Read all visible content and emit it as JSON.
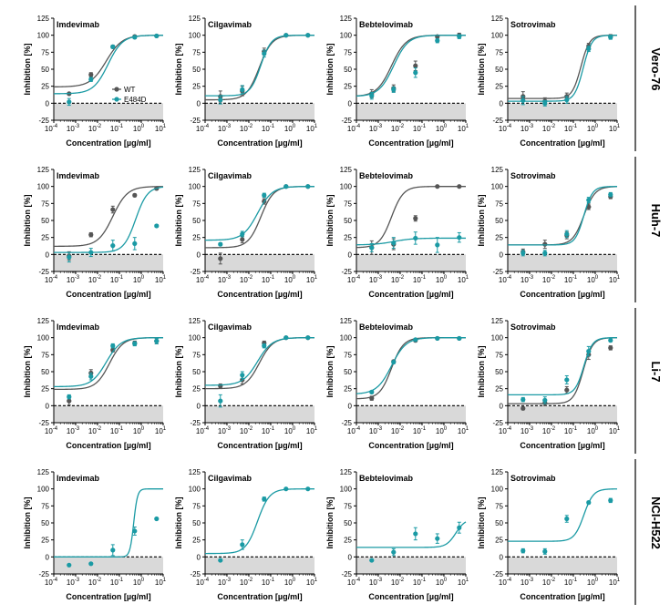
{
  "figure": {
    "xlabel": "Concentration [µg/ml]",
    "ylabel": "Inhibition [%]",
    "yticks": [
      -25,
      0,
      25,
      50,
      75,
      100,
      125
    ],
    "xtick_exponents": [
      "-4",
      "-3",
      "-2",
      "-1",
      "0",
      "1"
    ],
    "legend": {
      "wt": "WT",
      "mut": "E484D"
    },
    "colors": {
      "wt": "#555555",
      "mut": "#1a9aa4",
      "shade": "#d9d9d9"
    },
    "rows": [
      "Vero-76",
      "Huh-7",
      "Li-7",
      "NCI-H522"
    ],
    "columns": [
      "Imdevimab",
      "Cilgavimab",
      "Bebtelovimab",
      "Sotrovimab"
    ]
  },
  "chart_data": {
    "type": "scatter",
    "xscale": "log",
    "xlim": [
      0.0001,
      10
    ],
    "ylim": [
      -25,
      125
    ],
    "x": [
      0.0005,
      0.005,
      0.05,
      0.5,
      5
    ],
    "panels": [
      {
        "row": "Vero-76",
        "antibody": "Imdevimab",
        "wt": {
          "y": [
            14,
            42,
            83,
            98,
            99
          ],
          "err": [
            0,
            3,
            2,
            2,
            1
          ],
          "fit": {
            "bottom": 24,
            "top": 100,
            "ec50": 0.025,
            "hill": 1.2
          }
        },
        "mut": {
          "y": [
            2,
            35,
            83,
            97,
            99
          ],
          "err": [
            5,
            3,
            2,
            2,
            1
          ],
          "fit": {
            "bottom": 14,
            "top": 100,
            "ec50": 0.03,
            "hill": 1.3
          }
        }
      },
      {
        "row": "Vero-76",
        "antibody": "Cilgavimab",
        "wt": {
          "y": [
            10,
            18,
            76,
            100,
            100
          ],
          "err": [
            8,
            7,
            5,
            0,
            0
          ],
          "fit": {
            "bottom": 5,
            "top": 100,
            "ec50": 0.03,
            "hill": 1.5
          }
        },
        "mut": {
          "y": [
            5,
            20,
            73,
            100,
            100
          ],
          "err": [
            6,
            6,
            5,
            0,
            0
          ],
          "fit": {
            "bottom": 11,
            "top": 100,
            "ec50": 0.035,
            "hill": 1.8
          }
        }
      },
      {
        "row": "Vero-76",
        "antibody": "Bebtelovimab",
        "wt": {
          "y": [
            14,
            22,
            55,
            98,
            100
          ],
          "err": [
            6,
            5,
            7,
            2,
            3
          ],
          "fit": {
            "bottom": 10,
            "top": 100,
            "ec50": 0.004,
            "hill": 1.3
          }
        },
        "mut": {
          "y": [
            11,
            20,
            45,
            92,
            98
          ],
          "err": [
            5,
            4,
            7,
            3,
            3
          ],
          "fit": {
            "bottom": 10,
            "top": 100,
            "ec50": 0.005,
            "hill": 1.3
          }
        }
      },
      {
        "row": "Vero-76",
        "antibody": "Sotrovimab",
        "wt": {
          "y": [
            10,
            3,
            10,
            84,
            98
          ],
          "err": [
            7,
            5,
            5,
            4,
            3
          ],
          "fit": {
            "bottom": 7,
            "top": 100,
            "ec50": 0.22,
            "hill": 2.2
          }
        },
        "mut": {
          "y": [
            4,
            0,
            5,
            80,
            97
          ],
          "err": [
            6,
            4,
            5,
            4,
            3
          ],
          "fit": {
            "bottom": 3,
            "top": 100,
            "ec50": 0.28,
            "hill": 2.2
          }
        }
      },
      {
        "row": "Huh-7",
        "antibody": "Imdevimab",
        "wt": {
          "y": [
            -2,
            29,
            66,
            87,
            97
          ],
          "err": [
            6,
            3,
            5,
            2,
            2
          ],
          "fit": {
            "bottom": 12,
            "top": 100,
            "ec50": 0.05,
            "hill": 1.3
          }
        },
        "mut": {
          "y": [
            -4,
            3,
            13,
            16,
            42
          ],
          "err": [
            7,
            6,
            8,
            9,
            2
          ],
          "fit": {
            "bottom": 3,
            "top": 100,
            "ec50": 0.55,
            "hill": 1.6
          }
        }
      },
      {
        "row": "Huh-7",
        "antibody": "Cilgavimab",
        "wt": {
          "y": [
            -6,
            22,
            78,
            100,
            100
          ],
          "err": [
            8,
            5,
            4,
            0,
            0
          ],
          "fit": {
            "bottom": 10,
            "top": 100,
            "ec50": 0.035,
            "hill": 1.5
          }
        },
        "mut": {
          "y": [
            15,
            30,
            87,
            100,
            100
          ],
          "err": [
            2,
            4,
            3,
            0,
            0
          ],
          "fit": {
            "bottom": 21,
            "top": 100,
            "ec50": 0.025,
            "hill": 1.3
          }
        }
      },
      {
        "row": "Huh-7",
        "antibody": "Bebtelovimab",
        "wt": {
          "y": [
            10,
            15,
            53,
            100,
            100
          ],
          "err": [
            10,
            8,
            4,
            0,
            0
          ],
          "fit": {
            "bottom": 10,
            "top": 100,
            "ec50": 0.004,
            "hill": 1.6
          }
        },
        "mut": {
          "y": [
            10,
            17,
            24,
            14,
            25
          ],
          "err": [
            6,
            8,
            9,
            11,
            7
          ],
          "fit": {
            "bottom": 14,
            "top": 24,
            "ec50": 0.005,
            "hill": 1.0
          }
        }
      },
      {
        "row": "Huh-7",
        "antibody": "Sotrovimab",
        "wt": {
          "y": [
            4,
            15,
            28,
            70,
            85
          ],
          "err": [
            4,
            6,
            5,
            4,
            3
          ],
          "fit": {
            "bottom": 14,
            "top": 100,
            "ec50": 0.3,
            "hill": 1.7
          }
        },
        "mut": {
          "y": [
            2,
            2,
            30,
            80,
            88
          ],
          "err": [
            4,
            4,
            5,
            4,
            3
          ],
          "fit": {
            "bottom": 14,
            "top": 100,
            "ec50": 0.3,
            "hill": 2.2
          }
        }
      },
      {
        "row": "Li-7",
        "antibody": "Imdevimab",
        "wt": {
          "y": [
            7,
            48,
            82,
            92,
            95
          ],
          "err": [
            6,
            5,
            3,
            3,
            4
          ],
          "fit": {
            "bottom": 24,
            "top": 100,
            "ec50": 0.035,
            "hill": 1.4
          }
        },
        "mut": {
          "y": [
            13,
            43,
            88,
            91,
            95
          ],
          "err": [
            3,
            5,
            3,
            3,
            4
          ],
          "fit": {
            "bottom": 28,
            "top": 100,
            "ec50": 0.025,
            "hill": 1.3
          }
        }
      },
      {
        "row": "Li-7",
        "antibody": "Cilgavimab",
        "wt": {
          "y": [
            29,
            38,
            92,
            100,
            100
          ],
          "err": [
            3,
            6,
            3,
            0,
            0
          ],
          "fit": {
            "bottom": 25,
            "top": 100,
            "ec50": 0.03,
            "hill": 1.4
          }
        },
        "mut": {
          "y": [
            7,
            45,
            88,
            100,
            100
          ],
          "err": [
            9,
            5,
            3,
            0,
            0
          ],
          "fit": {
            "bottom": 30,
            "top": 100,
            "ec50": 0.025,
            "hill": 1.3
          }
        }
      },
      {
        "row": "Li-7",
        "antibody": "Bebtelovimab",
        "wt": {
          "y": [
            11,
            65,
            96,
            99,
            99
          ],
          "err": [
            3,
            2,
            2,
            1,
            1
          ],
          "fit": {
            "bottom": 10,
            "top": 100,
            "ec50": 0.004,
            "hill": 1.6
          }
        },
        "mut": {
          "y": [
            20,
            64,
            97,
            99,
            99
          ],
          "err": [
            2,
            2,
            2,
            1,
            1
          ],
          "fit": {
            "bottom": 17,
            "top": 100,
            "ec50": 0.004,
            "hill": 1.3
          }
        }
      },
      {
        "row": "Li-7",
        "antibody": "Sotrovimab",
        "wt": {
          "y": [
            -4,
            4,
            23,
            75,
            85
          ],
          "err": [
            2,
            4,
            5,
            7,
            3
          ],
          "fit": {
            "bottom": 3,
            "top": 100,
            "ec50": 0.28,
            "hill": 2.0
          }
        },
        "mut": {
          "y": [
            9,
            8,
            38,
            80,
            96
          ],
          "err": [
            3,
            5,
            6,
            7,
            2
          ],
          "fit": {
            "bottom": 16,
            "top": 100,
            "ec50": 0.3,
            "hill": 2.2
          }
        }
      },
      {
        "row": "NCI-H522",
        "antibody": "Imdevimab",
        "mut": {
          "y": [
            -12,
            -10,
            10,
            38,
            56
          ],
          "err": [
            0,
            0,
            8,
            6,
            0
          ],
          "fit": {
            "bottom": 0,
            "top": 100,
            "ec50": 0.45,
            "hill": 5.0
          }
        }
      },
      {
        "row": "NCI-H522",
        "antibody": "Cilgavimab",
        "mut": {
          "y": [
            -5,
            18,
            85,
            100,
            100
          ],
          "err": [
            0,
            7,
            3,
            0,
            0
          ],
          "fit": {
            "bottom": 5,
            "top": 100,
            "ec50": 0.025,
            "hill": 1.6
          }
        }
      },
      {
        "row": "NCI-H522",
        "antibody": "Bebtelovimab",
        "mut": {
          "y": [
            -5,
            7,
            34,
            27,
            43
          ],
          "err": [
            0,
            5,
            9,
            7,
            8
          ],
          "fit": {
            "bottom": 14,
            "top": 56,
            "ec50": 3.5,
            "hill": 2.0
          }
        }
      },
      {
        "row": "NCI-H522",
        "antibody": "Sotrovimab",
        "mut": {
          "y": [
            9,
            8,
            56,
            80,
            83
          ],
          "err": [
            3,
            4,
            5,
            2,
            3
          ],
          "fit": {
            "bottom": 23,
            "top": 100,
            "ec50": 0.3,
            "hill": 2.0
          }
        }
      }
    ]
  }
}
